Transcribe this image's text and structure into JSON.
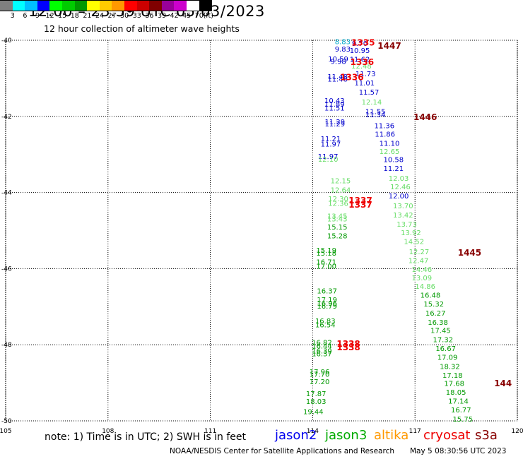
{
  "header": {
    "title": "12:00 – 23:59 UTC 05/03/2023",
    "subtitle": "12 hour collection of altimeter wave heights"
  },
  "legend": {
    "swatches": [
      {
        "color": "#7f7f7f",
        "label": "3"
      },
      {
        "color": "#00ffff",
        "label": "6"
      },
      {
        "color": "#00bfff",
        "label": "9"
      },
      {
        "color": "#0000ff",
        "label": "12"
      },
      {
        "color": "#00ff00",
        "label": "15"
      },
      {
        "color": "#00cc00",
        "label": "18"
      },
      {
        "color": "#009900",
        "label": "21"
      },
      {
        "color": "#ffff00",
        "label": "24"
      },
      {
        "color": "#ffcc00",
        "label": "27"
      },
      {
        "color": "#ff9900",
        "label": "30"
      },
      {
        "color": "#ff0000",
        "label": "33"
      },
      {
        "color": "#cc0000",
        "label": "36"
      },
      {
        "color": "#800000",
        "label": "39"
      },
      {
        "color": "#990099",
        "label": "42"
      },
      {
        "color": "#cc00cc",
        "label": "45"
      },
      {
        "color": "#ffffff",
        "label": "70"
      },
      {
        "color": "#000000",
        "label": ""
      }
    ],
    "unit": "(ft)"
  },
  "map": {
    "lat_ticks": [
      {
        "lat": -40,
        "label": "-40"
      },
      {
        "lat": -42,
        "label": "-42"
      },
      {
        "lat": -44,
        "label": "-44"
      },
      {
        "lat": -46,
        "label": "-46"
      },
      {
        "lat": -48,
        "label": "-48"
      },
      {
        "lat": -50,
        "label": "-50"
      }
    ],
    "lon_ticks": [
      {
        "lon": 105,
        "label": "105"
      },
      {
        "lon": 108,
        "label": "108"
      },
      {
        "lon": 111,
        "label": "111"
      },
      {
        "lon": 114,
        "label": "114"
      },
      {
        "lon": 117,
        "label": "117"
      },
      {
        "lon": 120,
        "label": "120"
      }
    ],
    "observations": [
      {
        "lon": 114.88,
        "lat": -40.03,
        "v": "8.83",
        "c": "#00aacc"
      },
      {
        "lon": 115.38,
        "lat": -40.07,
        "v": "9.70",
        "c": "#0000cc"
      },
      {
        "lon": 114.88,
        "lat": -40.22,
        "v": "9.83",
        "c": "#0000cc"
      },
      {
        "lon": 115.38,
        "lat": -40.26,
        "v": "10.95",
        "c": "#0000cc"
      },
      {
        "lon": 114.75,
        "lat": -40.48,
        "v": "10.59",
        "c": "#0000cc"
      },
      {
        "lon": 114.75,
        "lat": -40.55,
        "v": "9.98",
        "c": "#0000cc"
      },
      {
        "lon": 115.38,
        "lat": -40.49,
        "v": "11.62",
        "c": "#0000cc"
      },
      {
        "lon": 115.43,
        "lat": -40.67,
        "v": "12.48",
        "c": "#66dd66"
      },
      {
        "lon": 115.55,
        "lat": -40.87,
        "v": "11.73",
        "c": "#0000cc"
      },
      {
        "lon": 114.73,
        "lat": -40.95,
        "v": "11.48",
        "c": "#0000cc"
      },
      {
        "lon": 114.73,
        "lat": -41.01,
        "v": "11.48",
        "c": "#0000cc"
      },
      {
        "lon": 115.52,
        "lat": -41.11,
        "v": "11.01",
        "c": "#0000cc"
      },
      {
        "lon": 115.65,
        "lat": -41.35,
        "v": "11.57",
        "c": "#0000cc"
      },
      {
        "lon": 114.64,
        "lat": -41.58,
        "v": "10.43",
        "c": "#0000cc"
      },
      {
        "lon": 114.64,
        "lat": -41.67,
        "v": "11.89",
        "c": "#0000cc"
      },
      {
        "lon": 114.64,
        "lat": -41.77,
        "v": "11.51",
        "c": "#0000cc"
      },
      {
        "lon": 115.73,
        "lat": -41.61,
        "v": "12.14",
        "c": "#66dd66"
      },
      {
        "lon": 115.84,
        "lat": -41.86,
        "v": "11.55",
        "c": "#0000cc"
      },
      {
        "lon": 115.84,
        "lat": -41.95,
        "v": "11.34",
        "c": "#0000cc"
      },
      {
        "lon": 114.65,
        "lat": -42.13,
        "v": "11.29",
        "c": "#0000cc"
      },
      {
        "lon": 114.65,
        "lat": -42.19,
        "v": "11.29",
        "c": "#0000cc"
      },
      {
        "lon": 116.1,
        "lat": -42.24,
        "v": "11.36",
        "c": "#0000cc"
      },
      {
        "lon": 116.12,
        "lat": -42.46,
        "v": "11.86",
        "c": "#0000cc"
      },
      {
        "lon": 114.53,
        "lat": -42.58,
        "v": "11.21",
        "c": "#0000cc"
      },
      {
        "lon": 114.53,
        "lat": -42.72,
        "v": "11.97",
        "c": "#0000cc"
      },
      {
        "lon": 116.25,
        "lat": -42.7,
        "v": "11.10",
        "c": "#0000cc"
      },
      {
        "lon": 116.25,
        "lat": -42.91,
        "v": "12.65",
        "c": "#66dd66"
      },
      {
        "lon": 114.45,
        "lat": -43.04,
        "v": "11.97",
        "c": "#0000cc"
      },
      {
        "lon": 114.45,
        "lat": -43.12,
        "v": "12.10",
        "c": "#66dd66"
      },
      {
        "lon": 116.37,
        "lat": -43.13,
        "v": "10.58",
        "c": "#0000cc"
      },
      {
        "lon": 116.37,
        "lat": -43.36,
        "v": "11.21",
        "c": "#0000cc"
      },
      {
        "lon": 116.52,
        "lat": -43.62,
        "v": "12.03",
        "c": "#66dd66"
      },
      {
        "lon": 114.82,
        "lat": -43.68,
        "v": "12.15",
        "c": "#66dd66"
      },
      {
        "lon": 114.82,
        "lat": -43.92,
        "v": "12.64",
        "c": "#66dd66"
      },
      {
        "lon": 116.57,
        "lat": -43.84,
        "v": "12.46",
        "c": "#66dd66"
      },
      {
        "lon": 116.52,
        "lat": -44.08,
        "v": "12.00",
        "c": "#0000cc"
      },
      {
        "lon": 114.75,
        "lat": -44.16,
        "v": "12.30",
        "c": "#66dd66"
      },
      {
        "lon": 114.75,
        "lat": -44.28,
        "v": "12.36",
        "c": "#66dd66"
      },
      {
        "lon": 116.65,
        "lat": -44.34,
        "v": "13.70",
        "c": "#66dd66"
      },
      {
        "lon": 116.65,
        "lat": -44.58,
        "v": "13.42",
        "c": "#66dd66"
      },
      {
        "lon": 114.72,
        "lat": -44.61,
        "v": "13.45",
        "c": "#66dd66"
      },
      {
        "lon": 114.72,
        "lat": -44.68,
        "v": "13.43",
        "c": "#66dd66"
      },
      {
        "lon": 116.76,
        "lat": -44.82,
        "v": "13.73",
        "c": "#66dd66"
      },
      {
        "lon": 114.72,
        "lat": -44.9,
        "v": "15.15",
        "c": "#009900"
      },
      {
        "lon": 116.88,
        "lat": -45.05,
        "v": "13.92",
        "c": "#66dd66"
      },
      {
        "lon": 114.72,
        "lat": -45.13,
        "v": "15.28",
        "c": "#009900"
      },
      {
        "lon": 116.97,
        "lat": -45.28,
        "v": "14.52",
        "c": "#66dd66"
      },
      {
        "lon": 114.4,
        "lat": -45.51,
        "v": "15.19",
        "c": "#009900"
      },
      {
        "lon": 114.4,
        "lat": -45.58,
        "v": "15.18",
        "c": "#009900"
      },
      {
        "lon": 117.12,
        "lat": -45.55,
        "v": "12.27",
        "c": "#66dd66"
      },
      {
        "lon": 117.1,
        "lat": -45.78,
        "v": "12.47",
        "c": "#66dd66"
      },
      {
        "lon": 114.4,
        "lat": -45.82,
        "v": "16.71",
        "c": "#009900"
      },
      {
        "lon": 114.4,
        "lat": -45.93,
        "v": "17.00",
        "c": "#009900"
      },
      {
        "lon": 117.2,
        "lat": -46.01,
        "v": "14.46",
        "c": "#66dd66"
      },
      {
        "lon": 117.2,
        "lat": -46.23,
        "v": "13.09",
        "c": "#66dd66"
      },
      {
        "lon": 117.3,
        "lat": -46.46,
        "v": "14.86",
        "c": "#66dd66"
      },
      {
        "lon": 114.42,
        "lat": -46.58,
        "v": "16.37",
        "c": "#009900"
      },
      {
        "lon": 117.45,
        "lat": -46.69,
        "v": "16.48",
        "c": "#009900"
      },
      {
        "lon": 114.42,
        "lat": -46.81,
        "v": "17.19",
        "c": "#009900"
      },
      {
        "lon": 114.42,
        "lat": -46.9,
        "v": "16.96",
        "c": "#009900"
      },
      {
        "lon": 114.42,
        "lat": -46.98,
        "v": "16.79",
        "c": "#009900"
      },
      {
        "lon": 117.55,
        "lat": -46.92,
        "v": "15.32",
        "c": "#009900"
      },
      {
        "lon": 117.6,
        "lat": -47.16,
        "v": "16.27",
        "c": "#009900"
      },
      {
        "lon": 114.37,
        "lat": -47.37,
        "v": "16.83",
        "c": "#009900"
      },
      {
        "lon": 117.67,
        "lat": -47.4,
        "v": "16.38",
        "c": "#009900"
      },
      {
        "lon": 114.37,
        "lat": -47.47,
        "v": "16.54",
        "c": "#009900"
      },
      {
        "lon": 117.75,
        "lat": -47.62,
        "v": "17.45",
        "c": "#009900"
      },
      {
        "lon": 117.82,
        "lat": -47.86,
        "v": "17.32",
        "c": "#009900"
      },
      {
        "lon": 114.27,
        "lat": -47.93,
        "v": "16.82",
        "c": "#009900"
      },
      {
        "lon": 114.27,
        "lat": -48.02,
        "v": "16.44",
        "c": "#009900"
      },
      {
        "lon": 117.9,
        "lat": -48.09,
        "v": "16.67",
        "c": "#009900"
      },
      {
        "lon": 114.27,
        "lat": -48.15,
        "v": "16.39",
        "c": "#009900"
      },
      {
        "lon": 114.27,
        "lat": -48.23,
        "v": "16.37",
        "c": "#009900"
      },
      {
        "lon": 117.95,
        "lat": -48.32,
        "v": "17.09",
        "c": "#009900"
      },
      {
        "lon": 118.02,
        "lat": -48.56,
        "v": "18.32",
        "c": "#009900"
      },
      {
        "lon": 114.2,
        "lat": -48.7,
        "v": "17.96",
        "c": "#009900"
      },
      {
        "lon": 114.2,
        "lat": -48.77,
        "v": "17.70",
        "c": "#009900"
      },
      {
        "lon": 118.1,
        "lat": -48.79,
        "v": "17.18",
        "c": "#009900"
      },
      {
        "lon": 114.2,
        "lat": -48.96,
        "v": "17.20",
        "c": "#009900"
      },
      {
        "lon": 118.15,
        "lat": -49.01,
        "v": "17.68",
        "c": "#009900"
      },
      {
        "lon": 118.2,
        "lat": -49.24,
        "v": "18.05",
        "c": "#009900"
      },
      {
        "lon": 114.1,
        "lat": -49.28,
        "v": "17.87",
        "c": "#009900"
      },
      {
        "lon": 114.1,
        "lat": -49.48,
        "v": "18.03",
        "c": "#009900"
      },
      {
        "lon": 118.27,
        "lat": -49.47,
        "v": "17.14",
        "c": "#009900"
      },
      {
        "lon": 118.35,
        "lat": -49.7,
        "v": "16.77",
        "c": "#009900"
      },
      {
        "lon": 114.02,
        "lat": -49.75,
        "v": "19.44",
        "c": "#009900"
      },
      {
        "lon": 118.4,
        "lat": -49.94,
        "v": "15.75",
        "c": "#009900"
      }
    ],
    "pass_times": [
      {
        "lon": 115.48,
        "lat": -40.05,
        "t": "1335",
        "c": "#ee0000"
      },
      {
        "lon": 116.25,
        "lat": -40.13,
        "t": "1447",
        "c": "#880000"
      },
      {
        "lon": 115.45,
        "lat": -40.56,
        "t": "1336",
        "c": "#ee0000"
      },
      {
        "lon": 115.15,
        "lat": -40.96,
        "t": "1336",
        "c": "#ee0000"
      },
      {
        "lon": 117.3,
        "lat": -42.0,
        "t": "1446",
        "c": "#880000"
      },
      {
        "lon": 115.4,
        "lat": -44.19,
        "t": "1337",
        "c": "#ee0000"
      },
      {
        "lon": 115.4,
        "lat": -44.3,
        "t": "1337",
        "c": "#ee0000"
      },
      {
        "lon": 118.6,
        "lat": -45.57,
        "t": "1445",
        "c": "#880000"
      },
      {
        "lon": 115.05,
        "lat": -47.96,
        "t": "1338",
        "c": "#ee0000"
      },
      {
        "lon": 115.05,
        "lat": -48.05,
        "t": "1338",
        "c": "#ee0000"
      },
      {
        "lon": 119.58,
        "lat": -49.0,
        "t": "144",
        "c": "#880000"
      }
    ]
  },
  "footer": {
    "note": "note:  1) Time is in UTC;  2) SWH is in feet",
    "satellites": [
      {
        "name": "jason2",
        "color": "#0000ee"
      },
      {
        "name": "jason3",
        "color": "#00aa00"
      },
      {
        "name": "altika",
        "color": "#ff9900"
      },
      {
        "name": "cryosat",
        "color": "#ee0000"
      },
      {
        "name": "s3a",
        "color": "#880000"
      }
    ],
    "credit": "NOAA/NESDIS Center for Satellite Applications and Research",
    "timestamp": "May  5 08:30:56 UTC 2023"
  }
}
